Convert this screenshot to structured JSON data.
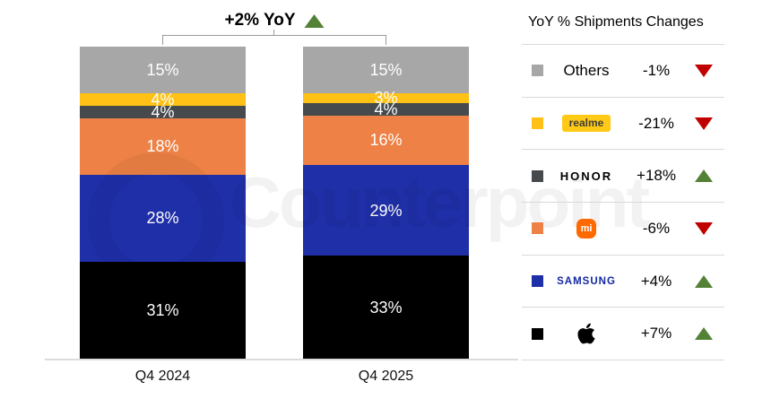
{
  "header": {
    "label": "+2% YoY",
    "direction": "up"
  },
  "chart_data": {
    "type": "bar",
    "stacked": true,
    "unit": "%",
    "title": "+2% YoY",
    "categories": [
      "Q4 2024",
      "Q4 2025"
    ],
    "series": [
      {
        "name": "Others",
        "color": "#A7A7A7",
        "values": [
          15,
          15
        ]
      },
      {
        "name": "realme",
        "color": "#FFC115",
        "values": [
          4,
          3
        ]
      },
      {
        "name": "HONOR",
        "color": "#464A4D",
        "values": [
          4,
          4
        ]
      },
      {
        "name": "Xiaomi",
        "color": "#ED8146",
        "values": [
          18,
          16
        ]
      },
      {
        "name": "Samsung",
        "color": "#1F2FA8",
        "values": [
          28,
          29
        ]
      },
      {
        "name": "Apple",
        "color": "#000000",
        "values": [
          31,
          33
        ]
      }
    ],
    "ylim": [
      0,
      100
    ],
    "legend_position": "right",
    "grid": false
  },
  "legend": {
    "title": "YoY % Shipments Changes",
    "rows": [
      {
        "brand": "Others",
        "kind": "text",
        "label": "Others",
        "swatch": "#A7A7A7",
        "change": "-1%",
        "direction": "down"
      },
      {
        "brand": "realme",
        "kind": "realme-badge",
        "label": "realme",
        "swatch": "#FFC115",
        "change": "-21%",
        "direction": "down"
      },
      {
        "brand": "HONOR",
        "kind": "honor-wordmark",
        "label": "HONOR",
        "swatch": "#464A4D",
        "change": "+18%",
        "direction": "up"
      },
      {
        "brand": "Xiaomi",
        "kind": "mi-logo",
        "label": "mi",
        "swatch": "#ED8146",
        "change": "-6%",
        "direction": "down"
      },
      {
        "brand": "Samsung",
        "kind": "samsung-wordmark",
        "label": "SAMSUNG",
        "swatch": "#1F2FA8",
        "change": "+4%",
        "direction": "up"
      },
      {
        "brand": "Apple",
        "kind": "apple-logo",
        "label": "",
        "swatch": "#000000",
        "change": "+7%",
        "direction": "up"
      }
    ]
  },
  "watermark": "Counterpoint",
  "colors": {
    "up_green": "#538135",
    "down_red": "#C00000",
    "baseline": "#D9D9D9"
  }
}
